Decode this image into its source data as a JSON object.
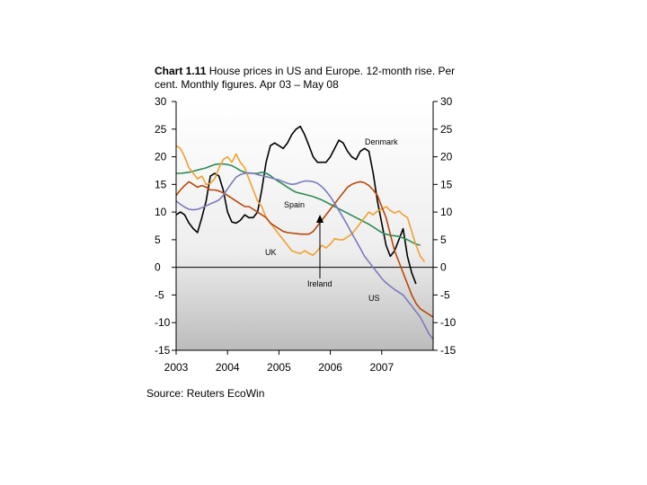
{
  "chart_data": {
    "type": "line",
    "title_bold": "Chart 1.11",
    "title_rest": " House prices in US and Europe. 12-month rise. Per cent. Monthly figures. Apr 03 – May 08",
    "xlabel": "",
    "ylabel": "",
    "x_start": 2003.25,
    "x_step": 0.0833333,
    "xlim": [
      2003.0,
      2008.0
    ],
    "ylim": [
      -15,
      30
    ],
    "y_ticks": [
      -15,
      -10,
      -5,
      0,
      5,
      10,
      15,
      20,
      25,
      30
    ],
    "x_ticks": [
      {
        "value": 2003,
        "label": "2003"
      },
      {
        "value": 2004,
        "label": "2004"
      },
      {
        "value": 2005,
        "label": "2005"
      },
      {
        "value": 2006,
        "label": "2006"
      },
      {
        "value": 2007,
        "label": "2007"
      }
    ],
    "grid": false,
    "series": [
      {
        "name": "Denmark",
        "color": "#000000",
        "x_start": 2003.0,
        "values": [
          9.5,
          10,
          9.5,
          8,
          7,
          6.3,
          9,
          12,
          16.5,
          17,
          16.5,
          14,
          10,
          8.2,
          8,
          8.5,
          9.5,
          9,
          9,
          10,
          14,
          19,
          22,
          22.5,
          22,
          21.5,
          22.5,
          24,
          25,
          25.5,
          24,
          22,
          20,
          19,
          19,
          19,
          20,
          21.5,
          23,
          22.5,
          21,
          20,
          19.5,
          21,
          21.5,
          21,
          17,
          12,
          8,
          4,
          2,
          3,
          5,
          7,
          2,
          -1,
          -3
        ]
      },
      {
        "name": "Spain",
        "color": "#2e8b57",
        "x_start": 2003.0,
        "values": [
          17,
          17,
          17.1,
          17.2,
          17.4,
          17.6,
          17.8,
          18,
          18.3,
          18.6,
          18.7,
          18.7,
          18.6,
          18.4,
          18,
          17.5,
          17.2,
          17,
          17,
          17,
          17.2,
          17,
          16.6,
          16,
          15.5,
          15,
          14.5,
          14,
          13.6,
          13.4,
          13.2,
          13,
          12.8,
          12.5,
          12.2,
          11.8,
          11.4,
          11,
          10.6,
          10.2,
          9.8,
          9.4,
          9,
          8.6,
          8.2,
          7.8,
          7.3,
          6.8,
          6.3,
          6,
          5.8,
          5.7,
          5.6,
          5.3,
          5,
          4.6,
          4.2,
          4
        ]
      },
      {
        "name": "UK",
        "color": "#f0a030",
        "x_start": 2003.0,
        "values": [
          22,
          21.5,
          20,
          18,
          17,
          16,
          16.5,
          15,
          15.2,
          16,
          18,
          19.5,
          20,
          19,
          20.5,
          19,
          18,
          16,
          14,
          12,
          11,
          9,
          8,
          7,
          6,
          5,
          4,
          3,
          2.7,
          2.5,
          3,
          2.5,
          2.2,
          3,
          4,
          3.5,
          4.2,
          5.2,
          5,
          5,
          5.5,
          6,
          7,
          8,
          9,
          10,
          9.5,
          10.2,
          10.5,
          11,
          10.3,
          9.8,
          10.2,
          9.5,
          9,
          6.5,
          4,
          2,
          1
        ]
      },
      {
        "name": "Ireland",
        "color": "#b8480a",
        "x_start": 2003.0,
        "values": [
          13,
          14,
          14.8,
          15.5,
          15,
          14.5,
          14.8,
          14.5,
          14,
          14,
          13.8,
          13.5,
          13,
          12.5,
          12,
          11.5,
          11,
          11,
          10.5,
          10,
          9.5,
          9,
          8,
          7.5,
          7,
          6.5,
          6.3,
          6.2,
          6.1,
          6,
          6,
          6,
          6.5,
          7.5,
          8.5,
          9.5,
          10.5,
          11.5,
          12.5,
          13.5,
          14.5,
          15,
          15.3,
          15.5,
          15.3,
          14.8,
          14,
          13,
          11,
          9,
          6,
          3,
          1,
          -1,
          -3,
          -5,
          -6.5,
          -7.5,
          -8,
          -8.5,
          -9
        ]
      },
      {
        "name": "US",
        "color": "#7b7bbb",
        "x_start": 2003.0,
        "values": [
          12,
          11.4,
          10.9,
          10.5,
          10.4,
          10.5,
          10.8,
          11.1,
          11.5,
          11.8,
          12.2,
          13,
          14.2,
          15.3,
          16.3,
          16.8,
          17,
          17.1,
          17,
          16.8,
          16.6,
          16.4,
          16.2,
          16,
          15.8,
          15.5,
          15.2,
          15,
          15.1,
          15.4,
          15.6,
          15.6,
          15.5,
          15.2,
          14.6,
          13.8,
          12.8,
          11.6,
          10.3,
          9,
          7.6,
          6.2,
          4.8,
          3.4,
          2,
          1,
          0,
          -1,
          -2,
          -2.8,
          -3.4,
          -4,
          -4.5,
          -5,
          -6,
          -7,
          -8,
          -9,
          -10.5,
          -12,
          -13,
          -14.5
        ]
      }
    ],
    "annotations": [
      {
        "text": "Denmark",
        "series": "Denmark"
      },
      {
        "text": "Spain",
        "series": "Spain"
      },
      {
        "text": "UK",
        "series": "UK"
      },
      {
        "text": "Ireland",
        "series": "Ireland"
      },
      {
        "text": "US",
        "series": "US"
      }
    ]
  },
  "source": "Source: Reuters EcoWin"
}
